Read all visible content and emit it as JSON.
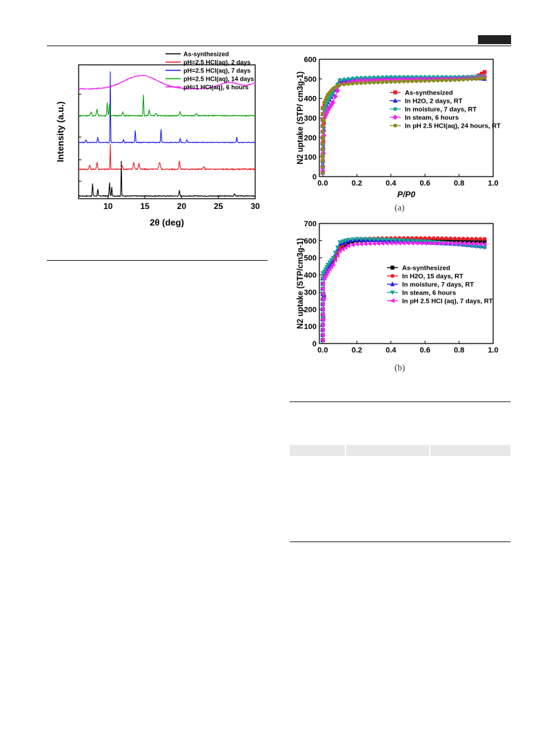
{
  "page": {
    "panel_a_label": "(a)",
    "panel_b_label": "(b)"
  },
  "chart_data": [
    {
      "id": "xrd",
      "type": "line",
      "xlabel": "2θ (deg)",
      "ylabel": "Intensity (a.u.)",
      "xlim": [
        6,
        30
      ],
      "xticks": [
        10,
        15,
        20,
        25,
        30
      ],
      "legend_position": "top-right",
      "series": [
        {
          "name": "As-synthesized",
          "color": "#000000",
          "offset": 0.02,
          "baseline": 0.0,
          "noise": 0.006,
          "peaks": [
            [
              7.9,
              0.09,
              0.07
            ],
            [
              8.6,
              0.05,
              0.07
            ],
            [
              10.2,
              0.1,
              0.07
            ],
            [
              10.5,
              0.07,
              0.06
            ],
            [
              11.8,
              0.26,
              0.05
            ],
            [
              19.7,
              0.04,
              0.08
            ],
            [
              27.2,
              0.015,
              0.1
            ]
          ]
        },
        {
          "name": "pH=2.5 HCl(aq), 2 days",
          "color": "#ee1c25",
          "offset": 0.22,
          "baseline": 0.0,
          "noise": 0.008,
          "peaks": [
            [
              7.5,
              0.03,
              0.1
            ],
            [
              8.5,
              0.05,
              0.1
            ],
            [
              10.3,
              0.19,
              0.05
            ],
            [
              11.9,
              0.03,
              0.1
            ],
            [
              13.5,
              0.05,
              0.12
            ],
            [
              14.2,
              0.04,
              0.12
            ],
            [
              17.0,
              0.05,
              0.15
            ],
            [
              19.7,
              0.06,
              0.1
            ],
            [
              23.0,
              0.015,
              0.15
            ]
          ]
        },
        {
          "name": "pH=2.5 HCl(aq), 7 days",
          "color": "#1c1cf0",
          "offset": 0.42,
          "baseline": 0.0,
          "noise": 0.005,
          "peaks": [
            [
              7.0,
              0.02,
              0.08
            ],
            [
              8.6,
              0.04,
              0.07
            ],
            [
              10.3,
              0.53,
              0.05
            ],
            [
              12.1,
              0.02,
              0.08
            ],
            [
              13.7,
              0.09,
              0.07
            ],
            [
              17.2,
              0.1,
              0.07
            ],
            [
              19.8,
              0.03,
              0.08
            ],
            [
              20.7,
              0.02,
              0.08
            ],
            [
              27.5,
              0.04,
              0.07
            ]
          ]
        },
        {
          "name": "pH=2.5 HCl(aq), 14 days",
          "color": "#10a010",
          "offset": 0.62,
          "baseline": 0.0,
          "noise": 0.007,
          "peaks": [
            [
              7.7,
              0.03,
              0.1
            ],
            [
              8.5,
              0.05,
              0.1
            ],
            [
              9.9,
              0.1,
              0.08
            ],
            [
              10.2,
              0.08,
              0.08
            ],
            [
              12.0,
              0.03,
              0.1
            ],
            [
              14.8,
              0.16,
              0.07
            ],
            [
              15.6,
              0.04,
              0.1
            ],
            [
              16.5,
              0.02,
              0.12
            ],
            [
              19.8,
              0.03,
              0.1
            ],
            [
              22.0,
              0.015,
              0.15
            ]
          ]
        },
        {
          "name": "pH=1 HCl(aq), 6 hours",
          "color": "#ee22ee",
          "offset": 0.82,
          "baseline": 0.0,
          "noise": 0.007,
          "peaks": [
            [
              14.5,
              0.1,
              3.2
            ],
            [
              26.5,
              0.05,
              2.0
            ],
            [
              30.5,
              0.05,
              1.5
            ]
          ]
        }
      ]
    },
    {
      "id": "n2a",
      "type": "line",
      "xlabel": "P/P0",
      "ylabel": "N2 uptake (STP/ cm3g-1)",
      "xlim": [
        -0.02,
        1.0
      ],
      "ylim": [
        0,
        600
      ],
      "xticks": [
        0.0,
        0.2,
        0.4,
        0.6,
        0.8,
        1.0
      ],
      "yticks": [
        0,
        100,
        200,
        300,
        400,
        500,
        600
      ],
      "legend_position": "center-right",
      "series": [
        {
          "name": "As-synthesized",
          "color": "#ee1c25",
          "marker": "square",
          "p": [
            0.0,
            0.01,
            0.03,
            0.06,
            0.1,
            0.2,
            0.4,
            0.6,
            0.8,
            0.9,
            0.95
          ],
          "v": [
            80,
            370,
            410,
            440,
            480,
            490,
            495,
            500,
            505,
            510,
            535
          ]
        },
        {
          "name": "In H2O, 2 days, RT",
          "color": "#1c1cf0",
          "marker": "triangle",
          "p": [
            0.0,
            0.01,
            0.03,
            0.06,
            0.1,
            0.2,
            0.4,
            0.6,
            0.8,
            0.9,
            0.95
          ],
          "v": [
            60,
            330,
            380,
            420,
            490,
            500,
            505,
            505,
            505,
            505,
            500
          ]
        },
        {
          "name": "In moisture, 7 days, RT",
          "color": "#1aa39a",
          "marker": "circle",
          "p": [
            0.0,
            0.01,
            0.03,
            0.06,
            0.1,
            0.2,
            0.4,
            0.6,
            0.8,
            0.9,
            0.95
          ],
          "v": [
            70,
            340,
            390,
            430,
            495,
            505,
            510,
            510,
            510,
            512,
            515
          ]
        },
        {
          "name": "In steam, 6 hours",
          "color": "#ee22ee",
          "marker": "diamond",
          "p": [
            0.0,
            0.01,
            0.03,
            0.06,
            0.1,
            0.2,
            0.4,
            0.6,
            0.8,
            0.9,
            0.95
          ],
          "v": [
            30,
            300,
            340,
            380,
            470,
            490,
            495,
            498,
            500,
            503,
            510
          ]
        },
        {
          "name": "In pH 2.5 HCl(aq), 24 hours, RT",
          "color": "#8a8a20",
          "marker": "circle",
          "p": [
            0.0,
            0.01,
            0.03,
            0.06,
            0.1,
            0.2,
            0.4,
            0.6,
            0.8,
            0.9,
            0.95
          ],
          "v": [
            100,
            380,
            420,
            450,
            470,
            478,
            485,
            490,
            495,
            500,
            505
          ]
        }
      ]
    },
    {
      "id": "n2b",
      "type": "line",
      "xlabel": "",
      "ylabel": "N2 uptake (STP/cm3g-1)",
      "xlim": [
        -0.02,
        1.0
      ],
      "ylim": [
        0,
        700
      ],
      "xticks": [
        0.0,
        0.2,
        0.4,
        0.6,
        0.8,
        1.0
      ],
      "yticks": [
        0,
        100,
        200,
        300,
        400,
        500,
        600,
        700
      ],
      "legend_position": "center-right",
      "series": [
        {
          "name": "As-synthesized",
          "color": "#000000",
          "marker": "square",
          "p": [
            0.0,
            0.01,
            0.03,
            0.06,
            0.1,
            0.15,
            0.2,
            0.4,
            0.6,
            0.8,
            0.95
          ],
          "v": [
            20,
            400,
            440,
            480,
            550,
            590,
            600,
            605,
            605,
            600,
            595
          ]
        },
        {
          "name": "In H2O, 15 days, RT",
          "color": "#ee1c25",
          "marker": "circle",
          "p": [
            0.0,
            0.01,
            0.03,
            0.06,
            0.1,
            0.15,
            0.2,
            0.4,
            0.6,
            0.8,
            0.95
          ],
          "v": [
            20,
            390,
            430,
            470,
            560,
            600,
            610,
            615,
            615,
            612,
            610
          ]
        },
        {
          "name": "In moisture, 7 days, RT",
          "color": "#1c1cf0",
          "marker": "triangle",
          "p": [
            0.0,
            0.01,
            0.03,
            0.06,
            0.1,
            0.15,
            0.2,
            0.4,
            0.6,
            0.8,
            0.95
          ],
          "v": [
            20,
            410,
            450,
            490,
            580,
            600,
            605,
            600,
            590,
            580,
            565
          ]
        },
        {
          "name": "In steam, 6 hours",
          "color": "#1aa39a",
          "marker": "triangle-down",
          "p": [
            0.0,
            0.01,
            0.03,
            0.06,
            0.1,
            0.15,
            0.2,
            0.4,
            0.6,
            0.8,
            0.95
          ],
          "v": [
            20,
            420,
            460,
            500,
            590,
            605,
            610,
            605,
            595,
            580,
            560
          ]
        },
        {
          "name": "In pH 2.5 HCl (aq), 7 days, RT",
          "color": "#ee22ee",
          "marker": "triangle-left",
          "p": [
            0.0,
            0.01,
            0.03,
            0.06,
            0.1,
            0.15,
            0.2,
            0.4,
            0.6,
            0.8,
            0.95
          ],
          "v": [
            20,
            380,
            420,
            460,
            540,
            570,
            580,
            585,
            585,
            585,
            580
          ]
        }
      ]
    }
  ]
}
